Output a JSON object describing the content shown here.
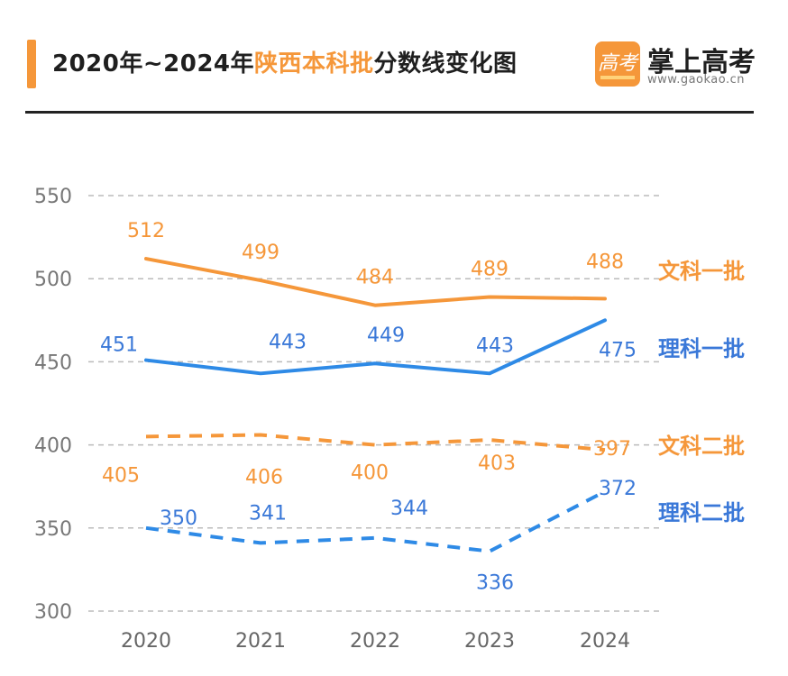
{
  "header": {
    "title_part1": "2020年~2024年",
    "title_highlight": "陕西本科批",
    "title_part2": "分数线变化图",
    "brand_logo_glyph": "高考",
    "brand_name": "掌上高考",
    "brand_url": "www.gaokao.cn"
  },
  "colors": {
    "orange": "#f5973a",
    "blue": "#2e8ae6",
    "blue_text": "#3a78d8",
    "grid": "#bbbbbb"
  },
  "chart_data": {
    "type": "line",
    "x": [
      "2020",
      "2021",
      "2022",
      "2023",
      "2024"
    ],
    "ylim": [
      300,
      550
    ],
    "yticks": [
      300,
      350,
      400,
      450,
      500,
      550
    ],
    "grid": true,
    "series": [
      {
        "name": "文科一批",
        "values": [
          512,
          499,
          484,
          489,
          488
        ],
        "color": "orange",
        "dashed": false
      },
      {
        "name": "理科一批",
        "values": [
          451,
          443,
          449,
          443,
          475
        ],
        "color": "blue",
        "dashed": false
      },
      {
        "name": "文科二批",
        "values": [
          405,
          406,
          400,
          403,
          397
        ],
        "color": "orange",
        "dashed": true
      },
      {
        "name": "理科二批",
        "values": [
          350,
          341,
          344,
          336,
          372
        ],
        "color": "blue",
        "dashed": true
      }
    ]
  }
}
